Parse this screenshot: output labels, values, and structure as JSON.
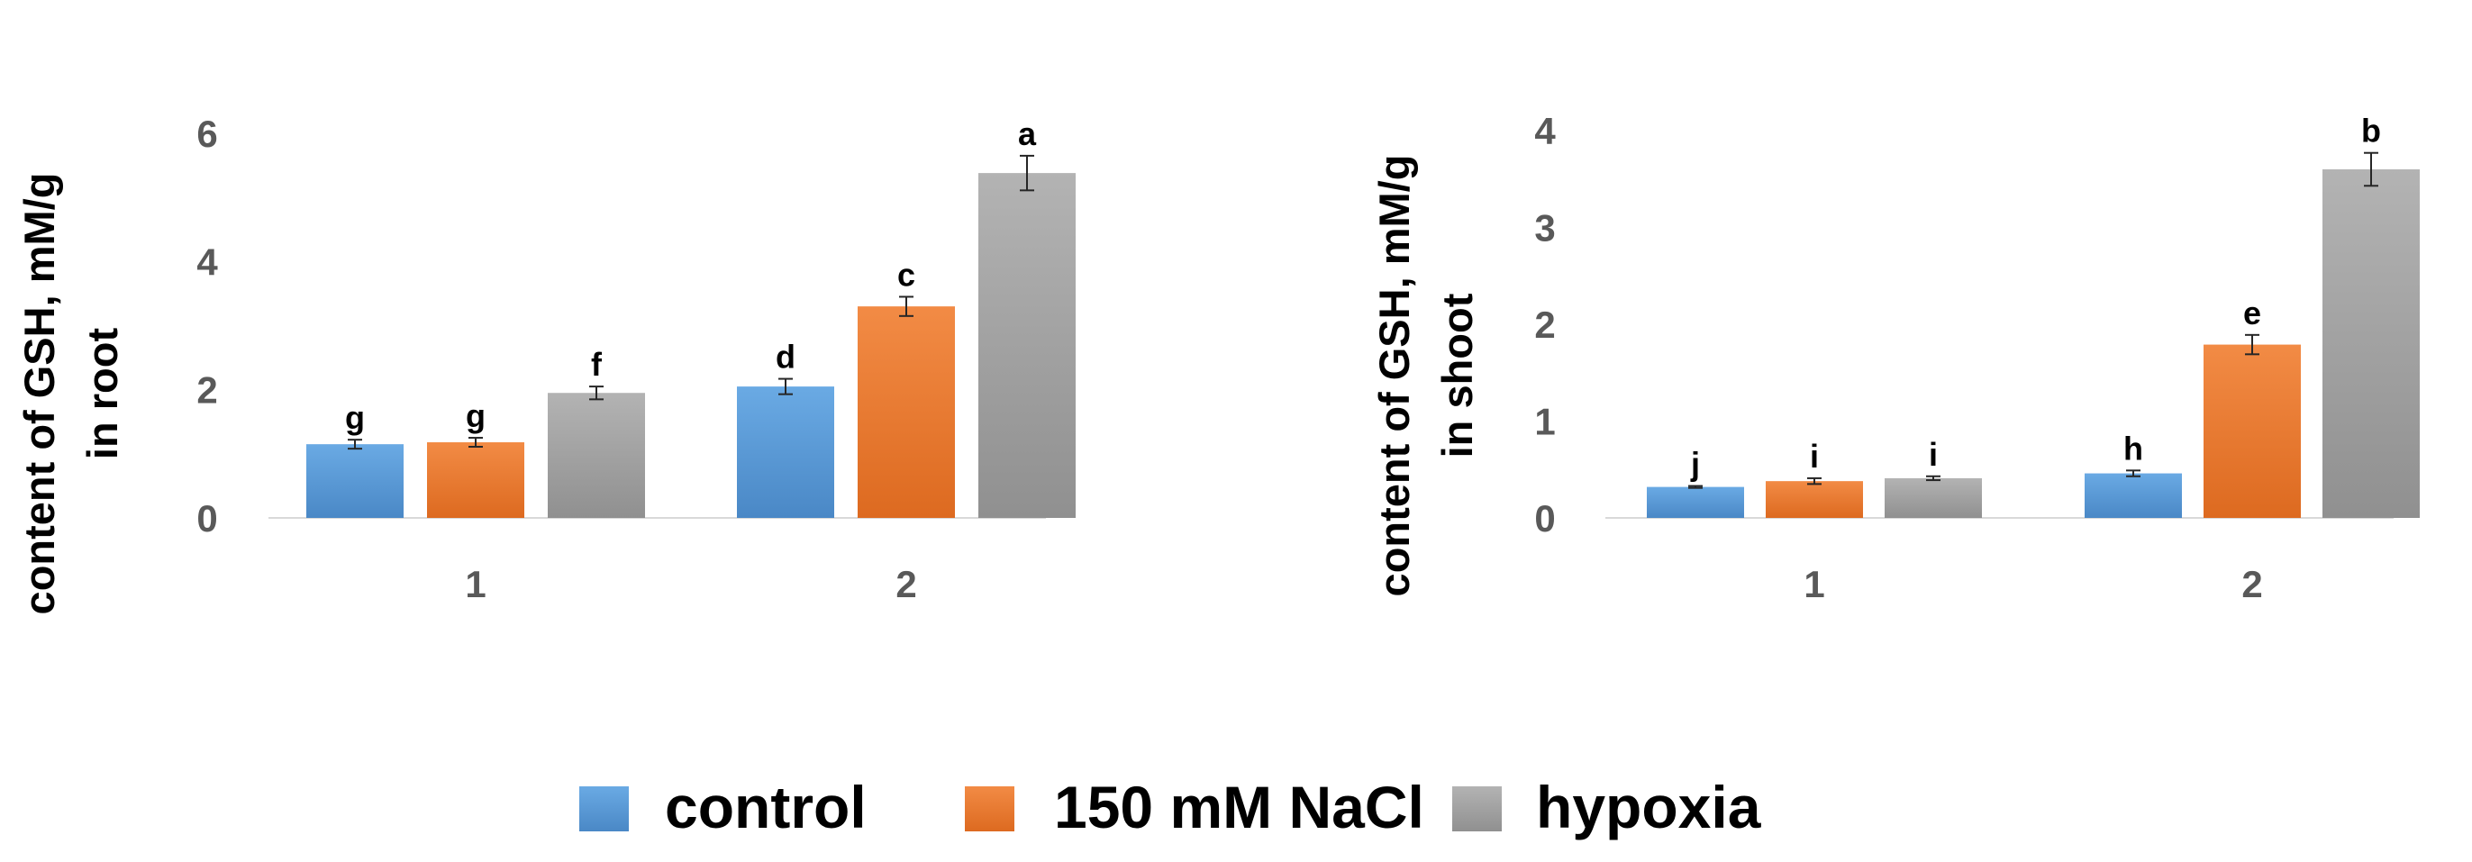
{
  "series_colors": {
    "control": "#5b9bd5",
    "150 mM NaCl": "#ed7d31",
    "hypoxia": "#a5a5a5"
  },
  "legend": [
    "control",
    "150 mM NaCl",
    "hypoxia"
  ],
  "chart_data": [
    {
      "type": "bar",
      "title": "",
      "xlabel": "",
      "ylabel_lines": [
        "content of GSH, mM/g",
        "in root"
      ],
      "categories": [
        "1",
        "2"
      ],
      "ylim": [
        0,
        6
      ],
      "yticks": [
        "0",
        "2",
        "4",
        "6"
      ],
      "series": [
        {
          "name": "control",
          "values": [
            1.15,
            2.05
          ],
          "errors": [
            0.07,
            0.12
          ],
          "letters": [
            "g",
            "d"
          ]
        },
        {
          "name": "150 mM NaCl",
          "values": [
            1.18,
            3.3
          ],
          "errors": [
            0.07,
            0.15
          ],
          "letters": [
            "g",
            "c"
          ]
        },
        {
          "name": "hypoxia",
          "values": [
            1.95,
            5.38
          ],
          "errors": [
            0.1,
            0.27
          ],
          "letters": [
            "f",
            "a"
          ]
        }
      ]
    },
    {
      "type": "bar",
      "title": "",
      "xlabel": "",
      "ylabel_lines": [
        "content of GSH, mM/g",
        "in shoot"
      ],
      "categories": [
        "1",
        "2"
      ],
      "ylim": [
        0,
        4
      ],
      "yticks": [
        "0",
        "1",
        "2",
        "3",
        "4"
      ],
      "series": [
        {
          "name": "control",
          "values": [
            0.32,
            0.46
          ],
          "errors": [
            0.01,
            0.03
          ],
          "letters": [
            "j",
            "h"
          ]
        },
        {
          "name": "150 mM NaCl",
          "values": [
            0.38,
            1.79
          ],
          "errors": [
            0.03,
            0.1
          ],
          "letters": [
            "i",
            "e"
          ]
        },
        {
          "name": "hypoxia",
          "values": [
            0.41,
            3.6
          ],
          "errors": [
            0.02,
            0.17
          ],
          "letters": [
            "i",
            "b"
          ]
        }
      ]
    }
  ]
}
